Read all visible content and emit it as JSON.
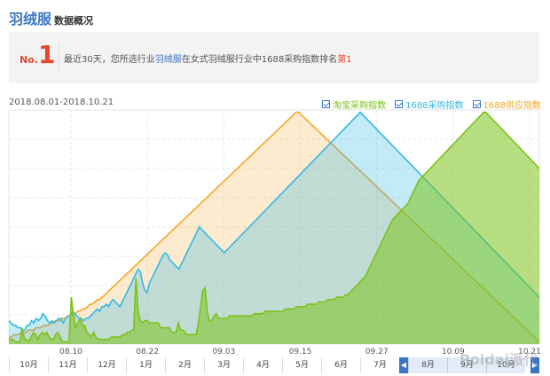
{
  "header": {
    "title": "羽绒服",
    "subtitle": "数据概况"
  },
  "rank": {
    "no_label": "No.",
    "number": "1",
    "text_pre": "最近30天，您所选行业",
    "text_industry": "羽绒服",
    "text_mid": "在女式羽绒服行业中1688采购指数排名",
    "text_rank": "第1"
  },
  "date_range": "2018.08.01-2018.10.21",
  "colors": {
    "taobao": "#7cc21a",
    "p1688": "#35b8e6",
    "supply": "#f5a623",
    "accent": "#3a76c4",
    "rank": "#e8452f"
  },
  "chart_data": {
    "type": "area",
    "x_ticks": [
      "08.10",
      "08.22",
      "09.03",
      "09.15",
      "09.27",
      "10.09",
      "10.21"
    ],
    "series": [
      {
        "name": "淘宝采购指数",
        "values": [
          2,
          2,
          2,
          1,
          1,
          1,
          7,
          2,
          2,
          1,
          3,
          5,
          4,
          2,
          4,
          5,
          4,
          5,
          3,
          2,
          2,
          4,
          5,
          3,
          1,
          1,
          1,
          1,
          20,
          12,
          7,
          9,
          11,
          8,
          8,
          5,
          4,
          3,
          5,
          3,
          2,
          2,
          2,
          2,
          2,
          2,
          3,
          3,
          3,
          3,
          3,
          4,
          4,
          5,
          5,
          6,
          6,
          28,
          14,
          10,
          9,
          10,
          10,
          9,
          9,
          9,
          9,
          9,
          7,
          7,
          7,
          7,
          7,
          5,
          5,
          5,
          9,
          6,
          6,
          5,
          4,
          4,
          4,
          4,
          4,
          9,
          16,
          23,
          24,
          14,
          10,
          10,
          12,
          13,
          11,
          11,
          11,
          11,
          11,
          12,
          12,
          12,
          12,
          12,
          12,
          12,
          12,
          12,
          12,
          12,
          13,
          13,
          13,
          13,
          13,
          14,
          14,
          14,
          14,
          14,
          14,
          14,
          14,
          14,
          15,
          15,
          15,
          15,
          15,
          16,
          16,
          16,
          16,
          16,
          17,
          17,
          17,
          17,
          17,
          18,
          18,
          18,
          18,
          19,
          19,
          19,
          19,
          20,
          20,
          20,
          20,
          21,
          21,
          22,
          23,
          24,
          25,
          26,
          27,
          28,
          29,
          31,
          33,
          35,
          37,
          39,
          41,
          43,
          45,
          47,
          49,
          51,
          53,
          54,
          55,
          56,
          57,
          58,
          59,
          60,
          62,
          64,
          66,
          68,
          70,
          71,
          72,
          73,
          74,
          75,
          76,
          77,
          78,
          79,
          80,
          81,
          82,
          83,
          84,
          85,
          86,
          87,
          88,
          89,
          90,
          91,
          92,
          93,
          94,
          95,
          96,
          97,
          98,
          99,
          99,
          98,
          97,
          96,
          95,
          94,
          93,
          92,
          91,
          90,
          89,
          88,
          87,
          86,
          85,
          84,
          83,
          82,
          81,
          80,
          79,
          78,
          77,
          76,
          75
        ]
      },
      {
        "name": "1688采购指数",
        "values": [
          10,
          9,
          8,
          8,
          7,
          7,
          6,
          6,
          8,
          8,
          10,
          9,
          11,
          10,
          11,
          13,
          12,
          10,
          9,
          10,
          9,
          10,
          11,
          11,
          9,
          11,
          12,
          12,
          14,
          13,
          12,
          11,
          11,
          10,
          11,
          11,
          12,
          13,
          14,
          15,
          14,
          16,
          16,
          17,
          16,
          18,
          19,
          18,
          17,
          16,
          18,
          20,
          22,
          24,
          26,
          28,
          30,
          32,
          31,
          26,
          23,
          22,
          26,
          28,
          30,
          32,
          34,
          36,
          38,
          39,
          38,
          36,
          35,
          34,
          33,
          32,
          34,
          36,
          38,
          40,
          42,
          44,
          46,
          48,
          50,
          49,
          48,
          47,
          46,
          45,
          44,
          43,
          42,
          41,
          40,
          39,
          40,
          41,
          42,
          43,
          44,
          45,
          46,
          47,
          48,
          49,
          50,
          51,
          52,
          53,
          54,
          55,
          56,
          57,
          58,
          59,
          60,
          61,
          62,
          63,
          64,
          65,
          66,
          67,
          68,
          69,
          70,
          71,
          72,
          73,
          74,
          75,
          76,
          77,
          78,
          79,
          80,
          81,
          82,
          83,
          84,
          85,
          86,
          87,
          88,
          89,
          90,
          91,
          92,
          93,
          94,
          95,
          96,
          97,
          98,
          99,
          98,
          97,
          96,
          95,
          94,
          93,
          92,
          91,
          90,
          89,
          88,
          87,
          86,
          85,
          84,
          83,
          82,
          81,
          80,
          79,
          78,
          77,
          76,
          75,
          74,
          73,
          72,
          71,
          70,
          69,
          68,
          67,
          66,
          65,
          64,
          63,
          62,
          61,
          60,
          59,
          58,
          57,
          56,
          55,
          54,
          53,
          52,
          51,
          50,
          49,
          48,
          47,
          46,
          45,
          44,
          43,
          42,
          41,
          40,
          39,
          38,
          37,
          36,
          35,
          34,
          33,
          32,
          31,
          30,
          29,
          28,
          27,
          26,
          25,
          24,
          23,
          22,
          21,
          20
        ]
      },
      {
        "name": "1688供应指数",
        "values": [
          3,
          3,
          4,
          4,
          4,
          5,
          5,
          5,
          6,
          6,
          6,
          7,
          7,
          7,
          8,
          8,
          8,
          9,
          9,
          10,
          10,
          10,
          11,
          11,
          12,
          12,
          13,
          13,
          14,
          14,
          15,
          15,
          16,
          17,
          17,
          18,
          19,
          19,
          20,
          21,
          22,
          23,
          24,
          25,
          26,
          27,
          28,
          29,
          30,
          31,
          32,
          33,
          34,
          35,
          36,
          37,
          38,
          39,
          40,
          41,
          42,
          43,
          44,
          45,
          46,
          47,
          48,
          49,
          50,
          51,
          52,
          53,
          54,
          55,
          56,
          57,
          58,
          59,
          60,
          61,
          62,
          63,
          64,
          65,
          66,
          67,
          68,
          69,
          70,
          71,
          72,
          73,
          74,
          75,
          76,
          77,
          78,
          79,
          80,
          81,
          82,
          83,
          84,
          85,
          86,
          87,
          88,
          89,
          90,
          91,
          92,
          93,
          94,
          95,
          96,
          97,
          98,
          99,
          99,
          98,
          97,
          96,
          95,
          94,
          93,
          92,
          91,
          90,
          89,
          88,
          87,
          86,
          85,
          84,
          83,
          82,
          81,
          80,
          79,
          78,
          77,
          76,
          75,
          74,
          73,
          72,
          71,
          70,
          69,
          68,
          67,
          66,
          65,
          64,
          63,
          62,
          61,
          60,
          59,
          58,
          57,
          56,
          55,
          54,
          53,
          52,
          51,
          50,
          49,
          48,
          47,
          46,
          45,
          44,
          43,
          42,
          41,
          40,
          39,
          38,
          37,
          36,
          35,
          34,
          33,
          32,
          31,
          30,
          29,
          28,
          27,
          26,
          25,
          24,
          23,
          22,
          21,
          20,
          19,
          18,
          17,
          16,
          15,
          14,
          13,
          12,
          11,
          10,
          9,
          8,
          7,
          6,
          5,
          4,
          3,
          2,
          1
        ]
      }
    ],
    "grid": true,
    "legend_position": "top-right"
  },
  "month_bar": {
    "months": [
      "10月",
      "11月",
      "12月",
      "1月",
      "2月",
      "3月",
      "4月",
      "5月",
      "6月",
      "7月",
      "8月",
      "9月",
      "10月"
    ],
    "selected": [
      10,
      12
    ],
    "prev_label": "◀",
    "next_label": "▶"
  },
  "watermark": "Poidai派代"
}
